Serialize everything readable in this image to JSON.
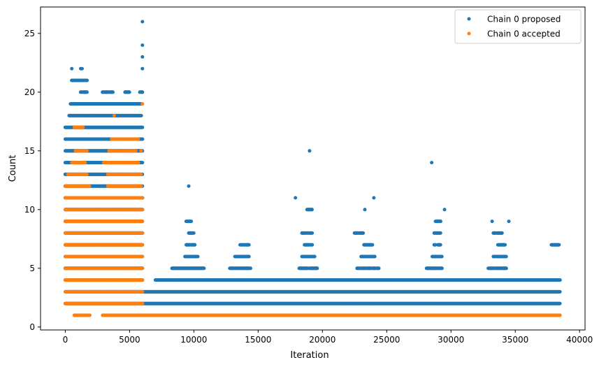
{
  "chart_data": {
    "type": "scatter",
    "title": "",
    "xlabel": "Iteration",
    "ylabel": "Count",
    "xlim": [
      -1925,
      40425
    ],
    "ylim": [
      -0.25,
      27.25
    ],
    "xticks": [
      0,
      5000,
      10000,
      15000,
      20000,
      25000,
      30000,
      35000,
      40000
    ],
    "yticks": [
      0,
      5,
      10,
      15,
      20,
      25
    ],
    "legend_position": "top-right",
    "grid": false,
    "series": [
      {
        "name": "Chain 0 proposed",
        "color": "#1f77b4",
        "bands": [
          {
            "y": 1,
            "x_ranges": []
          },
          {
            "y": 2,
            "x_ranges": [
              [
                0,
                6000
              ],
              [
                6000,
                38500
              ]
            ]
          },
          {
            "y": 3,
            "x_ranges": [
              [
                0,
                6000
              ],
              [
                6000,
                38500
              ]
            ]
          },
          {
            "y": 4,
            "x_ranges": [
              [
                0,
                6000
              ],
              [
                7000,
                38500
              ]
            ]
          },
          {
            "y": 5,
            "x_ranges": [
              [
                0,
                6000
              ],
              [
                8300,
                10800
              ],
              [
                12800,
                14400
              ],
              [
                18200,
                19600
              ],
              [
                22700,
                24400
              ],
              [
                28100,
                29300
              ],
              [
                32900,
                34300
              ]
            ]
          },
          {
            "y": 6,
            "x_ranges": [
              [
                0,
                6000
              ],
              [
                9300,
                10300
              ],
              [
                13200,
                14300
              ],
              [
                18400,
                19400
              ],
              [
                23000,
                24100
              ],
              [
                28500,
                29300
              ],
              [
                33300,
                34300
              ]
            ]
          },
          {
            "y": 7,
            "x_ranges": [
              [
                0,
                6000
              ],
              [
                9400,
                10100
              ],
              [
                13600,
                14300
              ],
              [
                18600,
                19200
              ],
              [
                23200,
                23900
              ],
              [
                28700,
                29200
              ],
              [
                33600,
                34200
              ],
              [
                37800,
                38400
              ]
            ]
          },
          {
            "y": 8,
            "x_ranges": [
              [
                0,
                6000
              ],
              [
                9600,
                10000
              ],
              [
                18400,
                19200
              ],
              [
                22500,
                23200
              ],
              [
                28700,
                29200
              ],
              [
                33300,
                34000
              ]
            ]
          },
          {
            "y": 9,
            "x_ranges": [
              [
                0,
                6000
              ],
              [
                9400,
                9800
              ],
              [
                28800,
                29200
              ]
            ]
          },
          {
            "y": 10,
            "x_ranges": [
              [
                0,
                6000
              ],
              [
                18800,
                19200
              ]
            ]
          },
          {
            "y": 11,
            "x_ranges": [
              [
                0,
                6000
              ]
            ]
          },
          {
            "y": 12,
            "x_ranges": [
              [
                0,
                6000
              ]
            ]
          },
          {
            "y": 13,
            "x_ranges": [
              [
                0,
                6000
              ]
            ]
          },
          {
            "y": 14,
            "x_ranges": [
              [
                0,
                6000
              ]
            ]
          },
          {
            "y": 15,
            "x_ranges": [
              [
                0,
                6000
              ]
            ]
          },
          {
            "y": 16,
            "x_ranges": [
              [
                0,
                6000
              ]
            ]
          },
          {
            "y": 17,
            "x_ranges": [
              [
                0,
                6000
              ]
            ]
          },
          {
            "y": 18,
            "x_ranges": [
              [
                300,
                5900
              ]
            ]
          },
          {
            "y": 19,
            "x_ranges": [
              [
                400,
                5900
              ]
            ]
          },
          {
            "y": 20,
            "x_ranges": [
              [
                1200,
                1700
              ],
              [
                2900,
                3700
              ],
              [
                4600,
                5000
              ],
              [
                5800,
                6000
              ]
            ]
          },
          {
            "y": 21,
            "x_ranges": [
              [
                500,
                1700
              ]
            ]
          },
          {
            "y": 22,
            "x_ranges": [
              [
                500,
                500
              ],
              [
                1300,
                1300
              ],
              [
                6000,
                6000
              ]
            ]
          }
        ],
        "points": [
          [
            1200,
            22
          ],
          [
            6000,
            23
          ],
          [
            6000,
            24
          ],
          [
            6000,
            26
          ],
          [
            9600,
            12
          ],
          [
            19000,
            15
          ],
          [
            28500,
            14
          ],
          [
            17900,
            11
          ],
          [
            24000,
            11
          ],
          [
            23300,
            10
          ],
          [
            29500,
            10
          ],
          [
            34500,
            9
          ],
          [
            33200,
            9
          ]
        ]
      },
      {
        "name": "Chain 0 accepted",
        "color": "#ff7f0e",
        "bands": [
          {
            "y": 1,
            "x_ranges": [
              [
                700,
                1900
              ],
              [
                2900,
                6000
              ],
              [
                6000,
                38500
              ]
            ]
          },
          {
            "y": 2,
            "x_ranges": [
              [
                0,
                6000
              ]
            ]
          },
          {
            "y": 3,
            "x_ranges": [
              [
                0,
                6000
              ]
            ]
          },
          {
            "y": 4,
            "x_ranges": [
              [
                0,
                6000
              ]
            ]
          },
          {
            "y": 5,
            "x_ranges": [
              [
                0,
                6000
              ]
            ]
          },
          {
            "y": 6,
            "x_ranges": [
              [
                0,
                6000
              ]
            ]
          },
          {
            "y": 7,
            "x_ranges": [
              [
                0,
                6000
              ]
            ]
          },
          {
            "y": 8,
            "x_ranges": [
              [
                0,
                6000
              ]
            ]
          },
          {
            "y": 9,
            "x_ranges": [
              [
                0,
                6000
              ]
            ]
          },
          {
            "y": 10,
            "x_ranges": [
              [
                0,
                6000
              ]
            ]
          },
          {
            "y": 11,
            "x_ranges": [
              [
                0,
                6000
              ]
            ]
          },
          {
            "y": 12,
            "x_ranges": [
              [
                0,
                1900
              ],
              [
                3300,
                5900
              ]
            ]
          },
          {
            "y": 13,
            "x_ranges": [
              [
                200,
                1700
              ],
              [
                3300,
                5900
              ]
            ]
          },
          {
            "y": 14,
            "x_ranges": [
              [
                500,
                1600
              ],
              [
                3000,
                5700
              ]
            ]
          },
          {
            "y": 15,
            "x_ranges": [
              [
                800,
                1700
              ],
              [
                3400,
                5500
              ]
            ]
          },
          {
            "y": 16,
            "x_ranges": [
              [
                3600,
                5700
              ]
            ]
          },
          {
            "y": 17,
            "x_ranges": [
              [
                700,
                1400
              ]
            ]
          }
        ],
        "points": [
          [
            3800,
            18
          ],
          [
            6000,
            19
          ],
          [
            5900,
            15
          ]
        ]
      }
    ]
  }
}
